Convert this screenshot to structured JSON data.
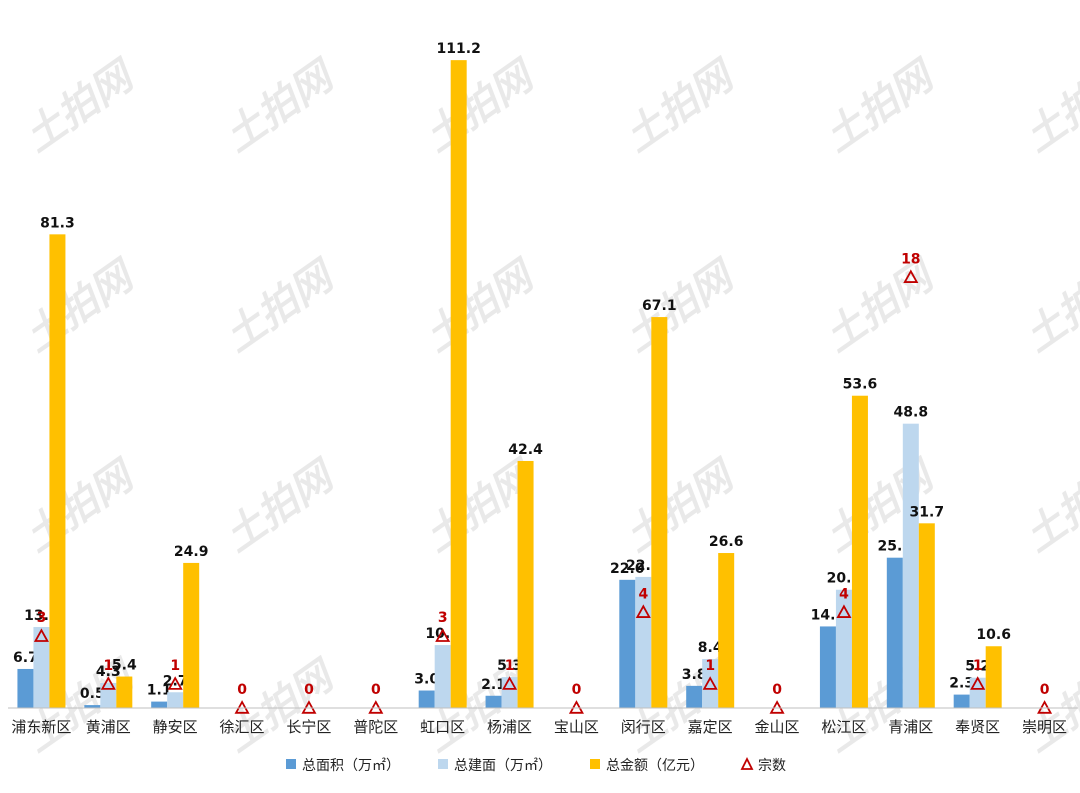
{
  "chart_data": {
    "type": "bar",
    "categories": [
      "浦东新区",
      "黄浦区",
      "静安区",
      "徐汇区",
      "长宁区",
      "普陀区",
      "虹口区",
      "杨浦区",
      "宝山区",
      "闵行区",
      "嘉定区",
      "金山区",
      "松江区",
      "青浦区",
      "奉贤区",
      "崇明区"
    ],
    "series": [
      {
        "name": "总面积（万㎡）",
        "color": "#5b9bd5",
        "values": [
          6.7,
          0.5,
          1.1,
          null,
          null,
          null,
          3.0,
          2.1,
          null,
          22.0,
          3.8,
          null,
          14.0,
          25.8,
          2.3,
          null
        ]
      },
      {
        "name": "总建面（万㎡）",
        "color": "#bdd7ee",
        "values": [
          13.9,
          4.3,
          2.7,
          null,
          null,
          null,
          10.8,
          5.3,
          null,
          22.5,
          8.4,
          null,
          20.3,
          48.8,
          5.2,
          null
        ]
      },
      {
        "name": "总金额（亿元）",
        "color": "#ffc000",
        "values": [
          81.3,
          5.4,
          24.9,
          null,
          null,
          null,
          111.2,
          42.4,
          null,
          67.1,
          26.6,
          null,
          53.6,
          31.7,
          10.6,
          null
        ]
      },
      {
        "name": "宗数",
        "type": "marker",
        "marker": "triangle",
        "color": "#c00000",
        "values": [
          3,
          1,
          1,
          0,
          0,
          0,
          3,
          1,
          0,
          4,
          1,
          0,
          4,
          18,
          1,
          0
        ]
      }
    ],
    "ylim": [
      0,
      115
    ],
    "count_ylim": [
      0,
      28
    ],
    "grid": false,
    "legend": "bottom",
    "watermark": "土拍网"
  }
}
